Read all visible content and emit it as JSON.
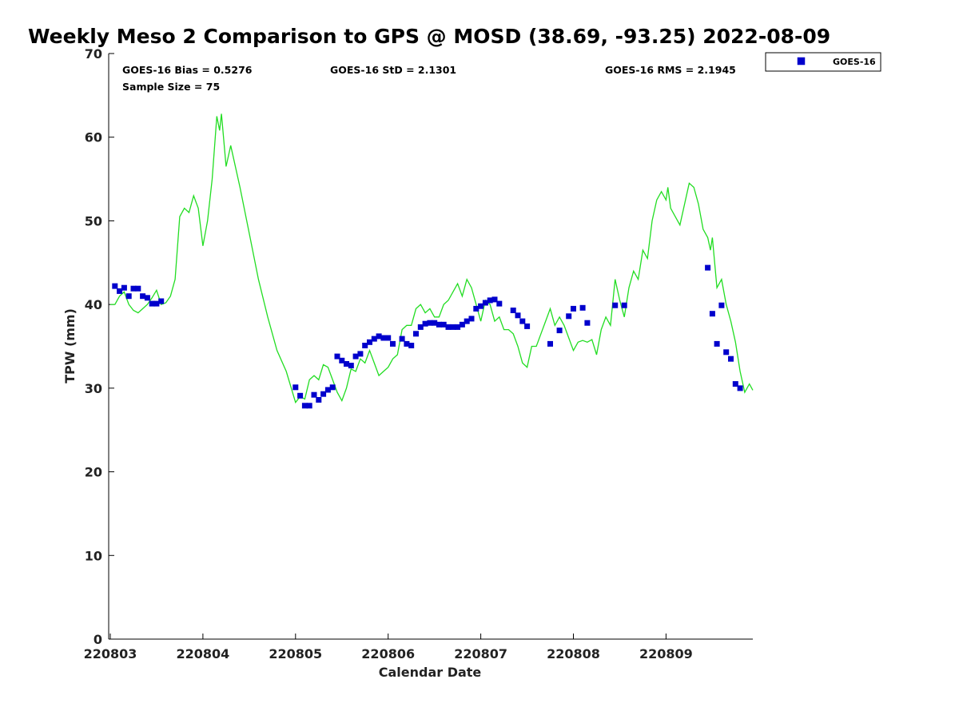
{
  "chart_data": {
    "type": "line+scatter",
    "title": "Weekly Meso 2 Comparison to GPS @ MOSD (38.69, -93.25) 2022-08-09",
    "xlabel": "Calendar Date",
    "ylabel": "TPW (mm)",
    "ylim": [
      0,
      70
    ],
    "yticks": [
      "0",
      "10",
      "20",
      "30",
      "40",
      "50",
      "60",
      "70"
    ],
    "xlim": [
      0,
      6.95
    ],
    "xticks": [
      {
        "x": 0,
        "label": "220803"
      },
      {
        "x": 1,
        "label": "220804"
      },
      {
        "x": 2,
        "label": "220805"
      },
      {
        "x": 3,
        "label": "220806"
      },
      {
        "x": 4,
        "label": "220807"
      },
      {
        "x": 5,
        "label": "220808"
      },
      {
        "x": 6,
        "label": "220809"
      }
    ],
    "stats": {
      "bias": "GOES-16 Bias = 0.5276",
      "std": "GOES-16 StD = 2.1301",
      "rms": "GOES-16 RMS = 2.1945",
      "sample": "Sample Size = 75"
    },
    "legend": {
      "position": "top-right-outside",
      "entries": [
        "GOES-16"
      ]
    },
    "colors": {
      "gps_line": "#22dd22",
      "goes_marker": "#0000cc",
      "axis": "#000000"
    },
    "series": [
      {
        "name": "GPS",
        "kind": "line",
        "points": [
          [
            0.0,
            40.0
          ],
          [
            0.05,
            40.0
          ],
          [
            0.1,
            41.0
          ],
          [
            0.15,
            41.5
          ],
          [
            0.2,
            40.0
          ],
          [
            0.25,
            39.3
          ],
          [
            0.3,
            39.0
          ],
          [
            0.35,
            39.5
          ],
          [
            0.4,
            40.0
          ],
          [
            0.45,
            40.8
          ],
          [
            0.5,
            41.7
          ],
          [
            0.55,
            40.0
          ],
          [
            0.6,
            40.2
          ],
          [
            0.65,
            41.0
          ],
          [
            0.7,
            43.0
          ],
          [
            0.75,
            50.5
          ],
          [
            0.8,
            51.5
          ],
          [
            0.85,
            51.0
          ],
          [
            0.9,
            53.0
          ],
          [
            0.95,
            51.5
          ],
          [
            1.0,
            47.0
          ],
          [
            1.05,
            50.0
          ],
          [
            1.1,
            55.0
          ],
          [
            1.15,
            62.5
          ],
          [
            1.18,
            60.8
          ],
          [
            1.2,
            62.8
          ],
          [
            1.25,
            56.5
          ],
          [
            1.3,
            59.0
          ],
          [
            1.4,
            54.0
          ],
          [
            1.5,
            48.5
          ],
          [
            1.6,
            43.0
          ],
          [
            1.7,
            38.5
          ],
          [
            1.8,
            34.5
          ],
          [
            1.9,
            32.0
          ],
          [
            2.0,
            28.3
          ],
          [
            2.05,
            29.0
          ],
          [
            2.1,
            28.7
          ],
          [
            2.15,
            31.0
          ],
          [
            2.2,
            31.5
          ],
          [
            2.25,
            31.0
          ],
          [
            2.3,
            32.8
          ],
          [
            2.35,
            32.5
          ],
          [
            2.4,
            31.0
          ],
          [
            2.45,
            29.5
          ],
          [
            2.5,
            28.5
          ],
          [
            2.55,
            30.0
          ],
          [
            2.6,
            32.3
          ],
          [
            2.65,
            32.0
          ],
          [
            2.7,
            33.5
          ],
          [
            2.75,
            33.0
          ],
          [
            2.8,
            34.5
          ],
          [
            2.85,
            33.0
          ],
          [
            2.9,
            31.5
          ],
          [
            2.95,
            32.0
          ],
          [
            3.0,
            32.5
          ],
          [
            3.05,
            33.5
          ],
          [
            3.1,
            34.0
          ],
          [
            3.15,
            37.0
          ],
          [
            3.2,
            37.5
          ],
          [
            3.25,
            37.5
          ],
          [
            3.3,
            39.5
          ],
          [
            3.35,
            40.0
          ],
          [
            3.4,
            39.0
          ],
          [
            3.45,
            39.5
          ],
          [
            3.5,
            38.5
          ],
          [
            3.55,
            38.5
          ],
          [
            3.6,
            40.0
          ],
          [
            3.65,
            40.5
          ],
          [
            3.7,
            41.5
          ],
          [
            3.75,
            42.5
          ],
          [
            3.8,
            41.0
          ],
          [
            3.85,
            43.0
          ],
          [
            3.9,
            42.0
          ],
          [
            3.95,
            40.0
          ],
          [
            4.0,
            38.0
          ],
          [
            4.05,
            40.5
          ],
          [
            4.1,
            40.0
          ],
          [
            4.15,
            38.0
          ],
          [
            4.2,
            38.5
          ],
          [
            4.25,
            37.0
          ],
          [
            4.3,
            37.0
          ],
          [
            4.35,
            36.5
          ],
          [
            4.4,
            35.0
          ],
          [
            4.45,
            33.0
          ],
          [
            4.5,
            32.5
          ],
          [
            4.55,
            35.0
          ],
          [
            4.6,
            35.0
          ],
          [
            4.65,
            36.5
          ],
          [
            4.7,
            38.0
          ],
          [
            4.75,
            39.5
          ],
          [
            4.8,
            37.5
          ],
          [
            4.85,
            38.5
          ],
          [
            4.9,
            37.5
          ],
          [
            4.95,
            36.0
          ],
          [
            5.0,
            34.5
          ],
          [
            5.05,
            35.5
          ],
          [
            5.1,
            35.7
          ],
          [
            5.15,
            35.5
          ],
          [
            5.2,
            35.8
          ],
          [
            5.25,
            34.0
          ],
          [
            5.3,
            37.0
          ],
          [
            5.35,
            38.5
          ],
          [
            5.4,
            37.5
          ],
          [
            5.45,
            43.0
          ],
          [
            5.5,
            40.5
          ],
          [
            5.55,
            38.5
          ],
          [
            5.6,
            42.0
          ],
          [
            5.65,
            44.0
          ],
          [
            5.7,
            43.0
          ],
          [
            5.75,
            46.5
          ],
          [
            5.8,
            45.5
          ],
          [
            5.85,
            50.0
          ],
          [
            5.9,
            52.5
          ],
          [
            5.95,
            53.5
          ],
          [
            6.0,
            52.5
          ],
          [
            6.02,
            54.0
          ],
          [
            6.05,
            51.5
          ],
          [
            6.1,
            50.5
          ],
          [
            6.15,
            49.5
          ],
          [
            6.2,
            52.0
          ],
          [
            6.25,
            54.5
          ],
          [
            6.3,
            54.0
          ],
          [
            6.35,
            52.0
          ],
          [
            6.4,
            49.0
          ],
          [
            6.45,
            48.0
          ],
          [
            6.48,
            46.5
          ],
          [
            6.5,
            48.0
          ],
          [
            6.55,
            42.0
          ],
          [
            6.6,
            43.0
          ],
          [
            6.65,
            40.0
          ],
          [
            6.7,
            38.0
          ],
          [
            6.75,
            35.5
          ],
          [
            6.8,
            32.0
          ],
          [
            6.85,
            29.5
          ],
          [
            6.9,
            30.5
          ],
          [
            6.95,
            29.5
          ],
          [
            7.0,
            27.3
          ],
          [
            7.05,
            28.0
          ],
          [
            7.1,
            27.5
          ],
          [
            7.15,
            26.3
          ],
          [
            7.2,
            26.2
          ]
        ]
      },
      {
        "name": "GOES-16",
        "kind": "scatter",
        "points": [
          [
            0.05,
            42.2
          ],
          [
            0.1,
            41.6
          ],
          [
            0.15,
            42.0
          ],
          [
            0.2,
            41.0
          ],
          [
            0.25,
            41.9
          ],
          [
            0.3,
            41.9
          ],
          [
            0.35,
            41.0
          ],
          [
            0.4,
            40.8
          ],
          [
            0.45,
            40.1
          ],
          [
            0.5,
            40.1
          ],
          [
            0.55,
            40.4
          ],
          [
            2.0,
            30.1
          ],
          [
            2.05,
            29.1
          ],
          [
            2.1,
            27.9
          ],
          [
            2.15,
            27.9
          ],
          [
            2.2,
            29.2
          ],
          [
            2.25,
            28.6
          ],
          [
            2.3,
            29.3
          ],
          [
            2.35,
            29.8
          ],
          [
            2.4,
            30.1
          ],
          [
            2.45,
            33.8
          ],
          [
            2.5,
            33.3
          ],
          [
            2.55,
            32.9
          ],
          [
            2.6,
            32.7
          ],
          [
            2.65,
            33.8
          ],
          [
            2.7,
            34.1
          ],
          [
            2.75,
            35.1
          ],
          [
            2.8,
            35.5
          ],
          [
            2.85,
            35.9
          ],
          [
            2.9,
            36.2
          ],
          [
            2.95,
            36.0
          ],
          [
            3.0,
            36.0
          ],
          [
            3.05,
            35.3
          ],
          [
            3.15,
            35.9
          ],
          [
            3.2,
            35.3
          ],
          [
            3.25,
            35.1
          ],
          [
            3.3,
            36.5
          ],
          [
            3.35,
            37.3
          ],
          [
            3.4,
            37.7
          ],
          [
            3.45,
            37.8
          ],
          [
            3.5,
            37.8
          ],
          [
            3.55,
            37.6
          ],
          [
            3.6,
            37.6
          ],
          [
            3.65,
            37.3
          ],
          [
            3.7,
            37.3
          ],
          [
            3.75,
            37.3
          ],
          [
            3.8,
            37.6
          ],
          [
            3.85,
            38.0
          ],
          [
            3.9,
            38.3
          ],
          [
            3.95,
            39.5
          ],
          [
            4.0,
            39.8
          ],
          [
            4.05,
            40.2
          ],
          [
            4.1,
            40.5
          ],
          [
            4.15,
            40.6
          ],
          [
            4.2,
            40.1
          ],
          [
            4.35,
            39.3
          ],
          [
            4.4,
            38.7
          ],
          [
            4.45,
            38.0
          ],
          [
            4.5,
            37.4
          ],
          [
            4.75,
            35.3
          ],
          [
            4.85,
            36.9
          ],
          [
            4.95,
            38.6
          ],
          [
            5.0,
            39.5
          ],
          [
            5.1,
            39.6
          ],
          [
            5.15,
            37.8
          ],
          [
            5.45,
            39.9
          ],
          [
            5.55,
            39.9
          ],
          [
            6.45,
            44.4
          ],
          [
            6.5,
            38.9
          ],
          [
            6.55,
            35.3
          ],
          [
            6.6,
            39.9
          ],
          [
            6.65,
            34.3
          ],
          [
            6.7,
            33.5
          ],
          [
            6.75,
            30.5
          ],
          [
            6.8,
            30.0
          ]
        ]
      }
    ]
  }
}
